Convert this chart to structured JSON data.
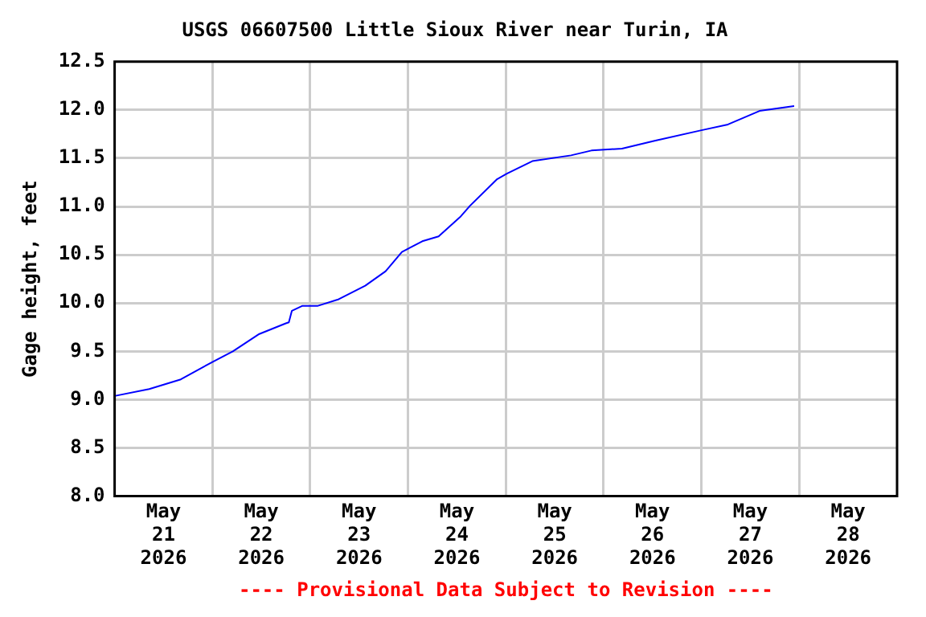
{
  "chart_data": {
    "type": "line",
    "title": "USGS 06607500 Little Sioux River near Turin, IA",
    "ylabel": "Gage height, feet",
    "annotations": [
      "---- Provisional Data Subject to Revision ----"
    ],
    "x": [
      "2026-05-21T00:15",
      "2026-05-21T08:30",
      "2026-05-21T16:15",
      "2026-05-22T00:00",
      "2026-05-22T05:00",
      "2026-05-22T11:30",
      "2026-05-22T18:00",
      "2026-05-22T18:45",
      "2026-05-22T19:30",
      "2026-05-22T22:00",
      "2026-05-23T01:45",
      "2026-05-23T07:00",
      "2026-05-23T13:30",
      "2026-05-23T18:30",
      "2026-05-23T22:30",
      "2026-05-24T03:30",
      "2026-05-24T07:30",
      "2026-05-24T12:45",
      "2026-05-24T15:15",
      "2026-05-24T21:45",
      "2026-05-25T00:15",
      "2026-05-25T06:30",
      "2026-05-25T16:00",
      "2026-05-25T21:00",
      "2026-05-26T04:30",
      "2026-05-26T12:30",
      "2026-05-27T00:00",
      "2026-05-27T06:30",
      "2026-05-27T14:15",
      "2026-05-27T22:45"
    ],
    "series": [
      {
        "color": "#0000ff",
        "values": [
          9.04,
          9.11,
          9.21,
          9.39,
          9.5,
          9.68,
          9.79,
          9.8,
          9.92,
          9.97,
          9.97,
          10.04,
          10.18,
          10.33,
          10.53,
          10.64,
          10.69,
          10.89,
          11.01,
          11.28,
          11.34,
          11.47,
          11.53,
          11.58,
          11.6,
          11.68,
          11.79,
          11.85,
          11.99,
          12.04
        ]
      }
    ],
    "xlim": [
      "2026-05-21T00:00",
      "2026-05-29T00:00"
    ],
    "xticks": [
      {
        "value": "2026-05-21T12:00",
        "label": "May 21 2026"
      },
      {
        "value": "2026-05-22T00:00",
        "label": null
      },
      {
        "value": "2026-05-22T12:00",
        "label": "May 22 2026"
      },
      {
        "value": "2026-05-23T00:00",
        "label": null
      },
      {
        "value": "2026-05-23T12:00",
        "label": "May 23 2026"
      },
      {
        "value": "2026-05-24T00:00",
        "label": null
      },
      {
        "value": "2026-05-24T12:00",
        "label": "May 24 2026"
      },
      {
        "value": "2026-05-25T00:00",
        "label": null
      },
      {
        "value": "2026-05-25T12:00",
        "label": "May 25 2026"
      },
      {
        "value": "2026-05-26T00:00",
        "label": null
      },
      {
        "value": "2026-05-26T12:00",
        "label": "May 26 2026"
      },
      {
        "value": "2026-05-27T00:00",
        "label": null
      },
      {
        "value": "2026-05-27T12:00",
        "label": "May 27 2026"
      },
      {
        "value": "2026-05-28T00:00",
        "label": null
      },
      {
        "value": "2026-05-28T12:00",
        "label": "May 28 2026"
      }
    ],
    "ylim": [
      8.0,
      12.5
    ],
    "yticks": [
      {
        "value": 8,
        "label": "8.0"
      },
      {
        "value": 8.5,
        "label": "8.5"
      },
      {
        "value": 9,
        "label": "9.0"
      },
      {
        "value": 9.5,
        "label": "9.5"
      },
      {
        "value": 10,
        "label": "10.0"
      },
      {
        "value": 10.5,
        "label": "10.5"
      },
      {
        "value": 11,
        "label": "11.0"
      },
      {
        "value": 11.5,
        "label": "11.5"
      },
      {
        "value": 12,
        "label": "12.0"
      },
      {
        "value": 12.5,
        "label": "12.5"
      }
    ],
    "grid": true,
    "legend": false,
    "marker": "none",
    "line_style": "solid"
  }
}
